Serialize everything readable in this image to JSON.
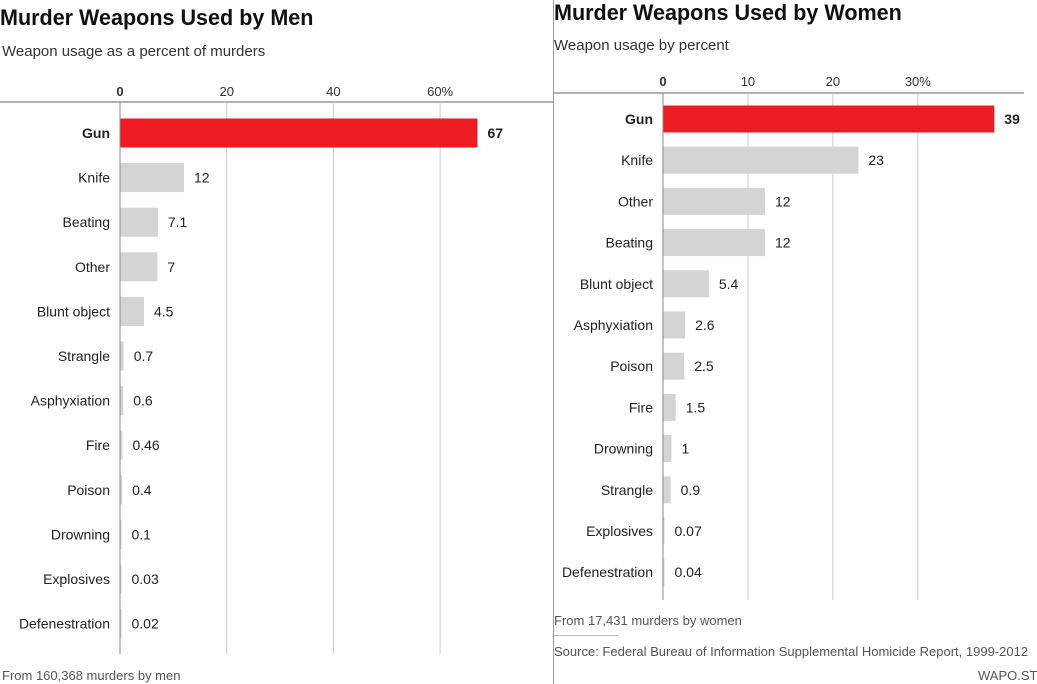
{
  "men": {
    "title": "Murder Weapons Used by Men",
    "subtitle": "Weapon usage as a percent of murders",
    "footnote": "From 160,368 murders by men"
  },
  "women": {
    "title": "Murder Weapons Used by Women",
    "subtitle": "Weapon usage by percent",
    "footnote": "From 17,431 murders by women",
    "source": "Source: Federal Bureau of Information Supplemental Homicide Report, 1999-2012",
    "credit": "WAPO.ST"
  },
  "colors": {
    "highlight": "#ed1c24",
    "bar": "#d4d4d2",
    "gridline": "#cccccc",
    "baseline": "#888888"
  },
  "chart_data": [
    {
      "type": "bar",
      "orientation": "horizontal",
      "title": "Murder Weapons Used by Men",
      "subtitle": "Weapon usage as a percent of murders",
      "categories": [
        "Gun",
        "Knife",
        "Beating",
        "Other",
        "Blunt object",
        "Strangle",
        "Asphyxiation",
        "Fire",
        "Poison",
        "Drowning",
        "Explosives",
        "Defenestration"
      ],
      "values": [
        67,
        12,
        7.1,
        7,
        4.5,
        0.7,
        0.6,
        0.46,
        0.4,
        0.1,
        0.03,
        0.02
      ],
      "value_labels": [
        "67",
        "12",
        "7.1",
        "7",
        "4.5",
        "0.7",
        "0.6",
        "0.46",
        "0.4",
        "0.1",
        "0.03",
        "0.02"
      ],
      "highlight": [
        "Gun"
      ],
      "ticks": [
        0,
        20,
        40,
        60
      ],
      "tick_labels": [
        "0",
        "20",
        "40",
        "60%"
      ],
      "xlim": [
        0,
        71.6
      ],
      "grid": true,
      "axis_position": "top",
      "note": "From 160,368 murders by men"
    },
    {
      "type": "bar",
      "orientation": "horizontal",
      "title": "Murder Weapons Used by Women",
      "subtitle": "Weapon usage by percent",
      "categories": [
        "Gun",
        "Knife",
        "Other",
        "Beating",
        "Blunt object",
        "Asphyxiation",
        "Poison",
        "Fire",
        "Drowning",
        "Strangle",
        "Explosives",
        "Defenestration"
      ],
      "values": [
        39,
        23,
        12,
        12,
        5.4,
        2.6,
        2.5,
        1.5,
        1,
        0.9,
        0.07,
        0.04
      ],
      "value_labels": [
        "39",
        "23",
        "12",
        "12",
        "5.4",
        "2.6",
        "2.5",
        "1.5",
        "1",
        "0.9",
        "0.07",
        "0.04"
      ],
      "highlight": [
        "Gun"
      ],
      "ticks": [
        0,
        10,
        20,
        30
      ],
      "tick_labels": [
        "0",
        "10",
        "20",
        "30%"
      ],
      "xlim": [
        0,
        41.2
      ],
      "grid": true,
      "axis_position": "top",
      "note": "From 17,431 murders by women",
      "source": "Source: Federal Bureau of Information Supplemental Homicide Report, 1999-2012"
    }
  ]
}
